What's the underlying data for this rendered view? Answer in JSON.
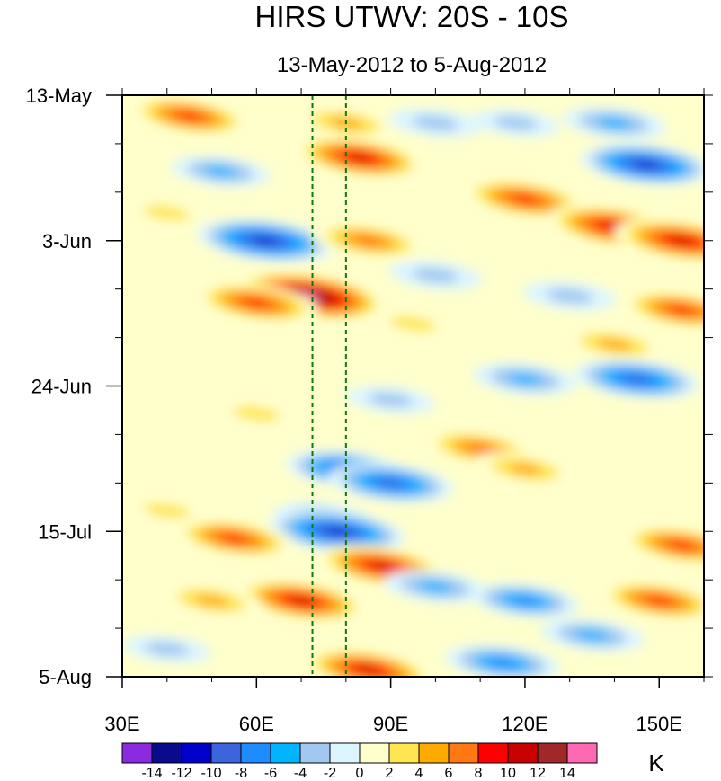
{
  "chart_data": {
    "type": "heatmap",
    "title": "HIRS UTWV: 20S - 10S",
    "subtitle": "13-May-2012 to 5-Aug-2012",
    "xlabel": "",
    "ylabel": "",
    "x_axis": {
      "range_deg": [
        30,
        160
      ],
      "ticks": [
        {
          "value": 30,
          "label": "30E"
        },
        {
          "value": 60,
          "label": "60E"
        },
        {
          "value": 90,
          "label": "90E"
        },
        {
          "value": 120,
          "label": "120E"
        },
        {
          "value": 150,
          "label": "150E"
        }
      ]
    },
    "y_axis": {
      "range_days": [
        0,
        84
      ],
      "ticks": [
        {
          "value": 0,
          "label": "13-May"
        },
        {
          "value": 21,
          "label": "3-Jun"
        },
        {
          "value": 42,
          "label": "24-Jun"
        },
        {
          "value": 63,
          "label": "15-Jul"
        },
        {
          "value": 84,
          "label": "5-Aug"
        }
      ]
    },
    "reference_lines_deg": [
      72.5,
      80
    ],
    "colorbar": {
      "unit": "K",
      "labels": [
        "-14",
        "-12",
        "-10",
        "-8",
        "-6",
        "-4",
        "-2",
        "0",
        "2",
        "4",
        "6",
        "8",
        "10",
        "12",
        "14"
      ],
      "colors": [
        "#8a2be2",
        "#0a0a8c",
        "#0000cd",
        "#3c64dc",
        "#1e8cff",
        "#00b4ff",
        "#a0c8f0",
        "#dcf5ff",
        "#ffffcc",
        "#ffe650",
        "#ffaa00",
        "#ff7814",
        "#ff0000",
        "#c80000",
        "#a02828",
        "#ff69b4"
      ]
    },
    "features": [
      {
        "lon": 45,
        "day": 3,
        "value": 9
      },
      {
        "lon": 52,
        "day": 11,
        "value": -5
      },
      {
        "lon": 80,
        "day": 4,
        "value": 6
      },
      {
        "lon": 83,
        "day": 9,
        "value": 11
      },
      {
        "lon": 100,
        "day": 4,
        "value": -4
      },
      {
        "lon": 118,
        "day": 4,
        "value": -3
      },
      {
        "lon": 140,
        "day": 4,
        "value": -6
      },
      {
        "lon": 147,
        "day": 10,
        "value": -11
      },
      {
        "lon": 40,
        "day": 17,
        "value": 4
      },
      {
        "lon": 120,
        "day": 15,
        "value": 10
      },
      {
        "lon": 140,
        "day": 19,
        "value": 12
      },
      {
        "lon": 155,
        "day": 21,
        "value": 12
      },
      {
        "lon": 62,
        "day": 21,
        "value": -12
      },
      {
        "lon": 85,
        "day": 21,
        "value": 8
      },
      {
        "lon": 72,
        "day": 29,
        "value": 15
      },
      {
        "lon": 60,
        "day": 30,
        "value": 10
      },
      {
        "lon": 100,
        "day": 26,
        "value": -4
      },
      {
        "lon": 130,
        "day": 29,
        "value": -4
      },
      {
        "lon": 155,
        "day": 31,
        "value": 9
      },
      {
        "lon": 95,
        "day": 33,
        "value": 4
      },
      {
        "lon": 140,
        "day": 36,
        "value": 6
      },
      {
        "lon": 145,
        "day": 41,
        "value": -10
      },
      {
        "lon": 120,
        "day": 41,
        "value": -6
      },
      {
        "lon": 90,
        "day": 44,
        "value": -3
      },
      {
        "lon": 60,
        "day": 46,
        "value": 4
      },
      {
        "lon": 110,
        "day": 51,
        "value": 8
      },
      {
        "lon": 120,
        "day": 54,
        "value": 6
      },
      {
        "lon": 80,
        "day": 54,
        "value": -9
      },
      {
        "lon": 90,
        "day": 56,
        "value": -10
      },
      {
        "lon": 75,
        "day": 61,
        "value": -5
      },
      {
        "lon": 78,
        "day": 63,
        "value": -12
      },
      {
        "lon": 55,
        "day": 64,
        "value": 9
      },
      {
        "lon": 40,
        "day": 60,
        "value": 4
      },
      {
        "lon": 155,
        "day": 65,
        "value": 9
      },
      {
        "lon": 88,
        "day": 68,
        "value": 11
      },
      {
        "lon": 70,
        "day": 73,
        "value": 11
      },
      {
        "lon": 50,
        "day": 73,
        "value": 6
      },
      {
        "lon": 100,
        "day": 71,
        "value": -6
      },
      {
        "lon": 120,
        "day": 73,
        "value": -7
      },
      {
        "lon": 150,
        "day": 73,
        "value": 9
      },
      {
        "lon": 135,
        "day": 78,
        "value": -6
      },
      {
        "lon": 115,
        "day": 82,
        "value": -8
      },
      {
        "lon": 85,
        "day": 83,
        "value": 11
      },
      {
        "lon": 40,
        "day": 80,
        "value": -3
      }
    ]
  }
}
